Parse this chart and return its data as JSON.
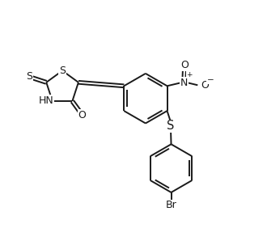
{
  "bg_color": "#ffffff",
  "line_color": "#1a1a1a",
  "line_width": 1.4,
  "font_size": 8.5,
  "figsize": [
    3.3,
    2.98
  ],
  "dpi": 100,
  "xlim": [
    0.0,
    6.5
  ],
  "ylim": [
    0.0,
    6.0
  ]
}
